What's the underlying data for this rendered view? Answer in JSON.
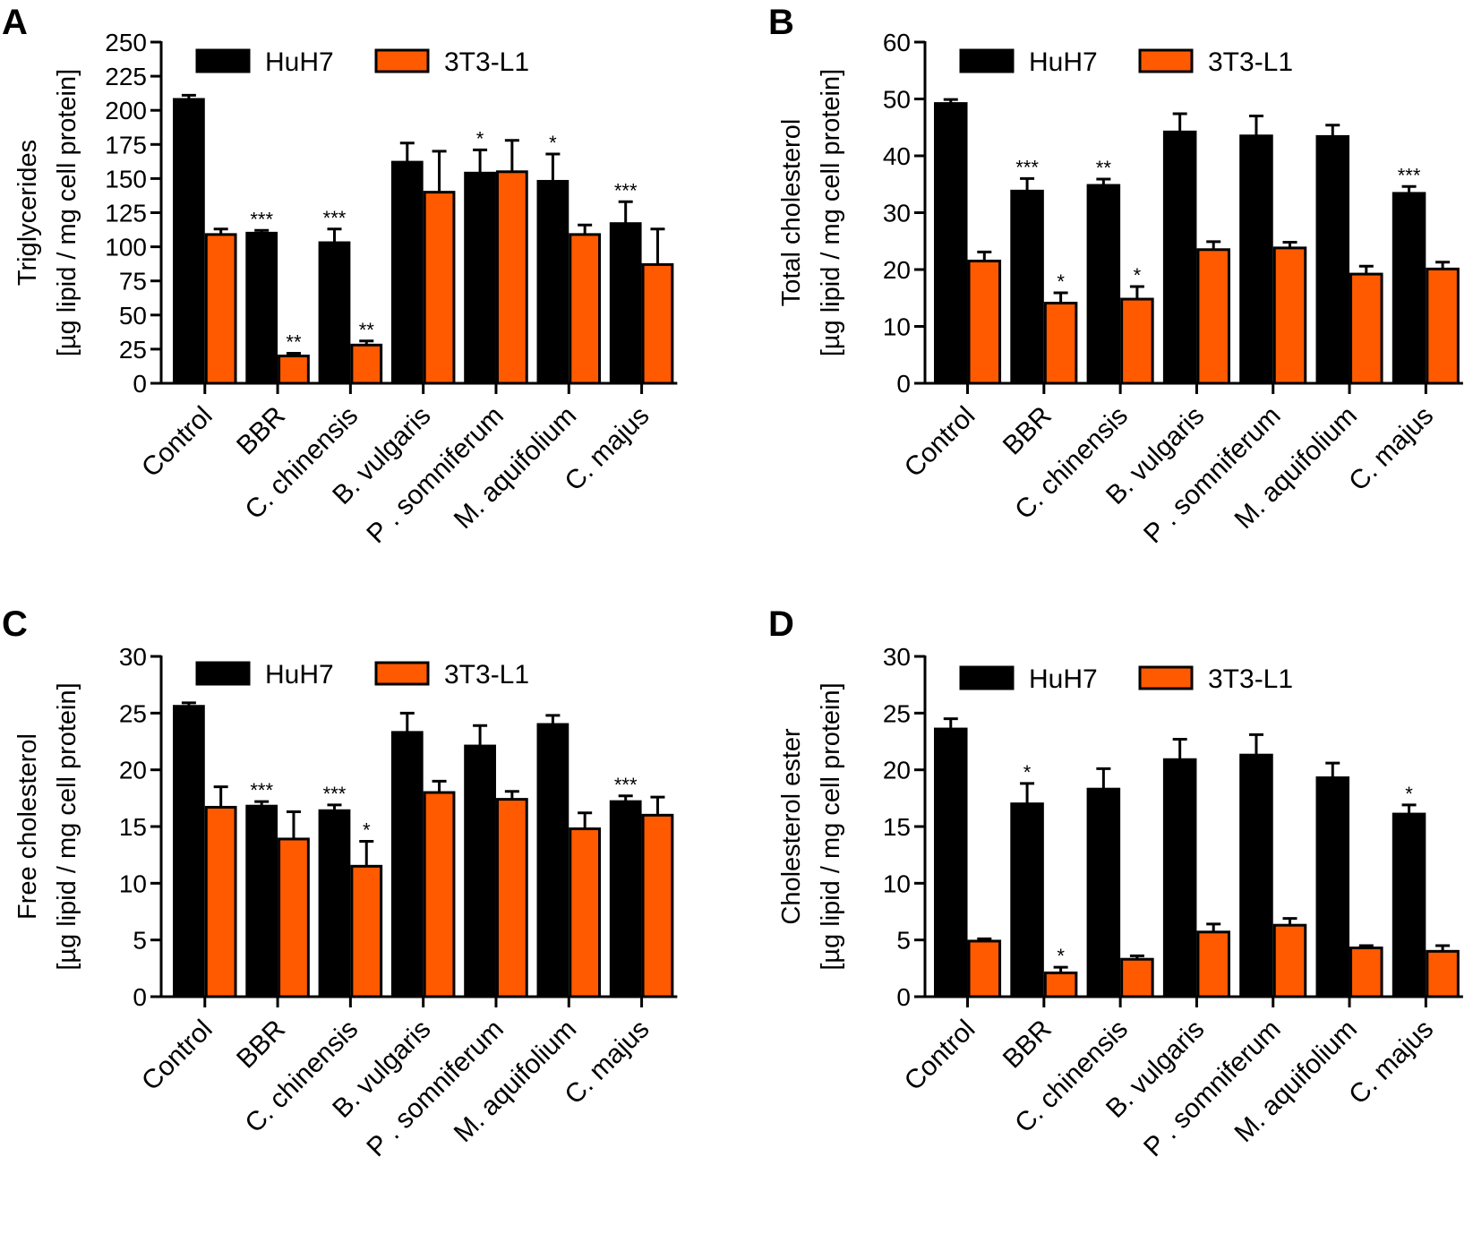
{
  "colors": {
    "huh7": "#000000",
    "l1": "#ff5a00",
    "axis": "#000000"
  },
  "series_names": [
    "HuH7",
    "3T3-L1"
  ],
  "categories": [
    "Control",
    "BBR",
    "C. chinensis",
    "B. vulgaris",
    "P . somniferum",
    "M. aquifolium",
    "C. majus"
  ],
  "ylabel_line2": "[µg lipid / mg cell protein]",
  "chart_data": [
    {
      "panel": "A",
      "type": "bar",
      "ylabel": "Triglycerides",
      "ylim": [
        0,
        250
      ],
      "ticks": [
        0,
        25,
        50,
        75,
        100,
        125,
        150,
        175,
        200,
        225,
        250
      ],
      "categories": [
        "Control",
        "BBR",
        "C. chinensis",
        "B. vulgaris",
        "P . somniferum",
        "M. aquifolium",
        "C. majus"
      ],
      "series": [
        {
          "name": "HuH7",
          "values": [
            208,
            110,
            103,
            162,
            154,
            148,
            117
          ],
          "errors": [
            3,
            2,
            10,
            14,
            17,
            20,
            16
          ],
          "sig": [
            "",
            "***",
            "***",
            "",
            "*",
            "*",
            "***"
          ]
        },
        {
          "name": "3T3-L1",
          "values": [
            109,
            20,
            28,
            140,
            155,
            109,
            87
          ],
          "errors": [
            4,
            2,
            3,
            30,
            23,
            7,
            26
          ],
          "sig": [
            "",
            "**",
            "**",
            "",
            "",
            "",
            ""
          ]
        }
      ],
      "legend": "top"
    },
    {
      "panel": "B",
      "type": "bar",
      "ylabel": "Total cholesterol",
      "ylim": [
        0,
        60
      ],
      "ticks": [
        0,
        10,
        20,
        30,
        40,
        50,
        60
      ],
      "categories": [
        "Control",
        "BBR",
        "C. chinensis",
        "B. vulgaris",
        "P . somniferum",
        "M. aquifolium",
        "C. majus"
      ],
      "series": [
        {
          "name": "HuH7",
          "values": [
            49.2,
            33.8,
            34.8,
            44.2,
            43.5,
            43.4,
            33.4
          ],
          "errors": [
            0.7,
            2.2,
            1.1,
            3.2,
            3.5,
            2.0,
            1.2
          ],
          "sig": [
            "",
            "***",
            "**",
            "",
            "",
            "",
            "***"
          ]
        },
        {
          "name": "3T3-L1",
          "values": [
            21.5,
            14.1,
            14.8,
            23.5,
            23.8,
            19.2,
            20.1
          ],
          "errors": [
            1.6,
            1.8,
            2.2,
            1.4,
            1.0,
            1.4,
            1.2
          ],
          "sig": [
            "",
            "*",
            "*",
            "",
            "",
            "",
            ""
          ]
        }
      ],
      "legend": "top"
    },
    {
      "panel": "C",
      "type": "bar",
      "ylabel": "Free cholesterol",
      "ylim": [
        0,
        30
      ],
      "ticks": [
        0,
        5,
        10,
        15,
        20,
        25,
        30
      ],
      "categories": [
        "Control",
        "BBR",
        "C. chinensis",
        "B. vulgaris",
        "P . somniferum",
        "M. aquifolium",
        "C. majus"
      ],
      "series": [
        {
          "name": "HuH7",
          "values": [
            25.6,
            16.8,
            16.4,
            23.3,
            22.1,
            24.0,
            17.2
          ],
          "errors": [
            0.3,
            0.4,
            0.5,
            1.7,
            1.8,
            0.8,
            0.5
          ],
          "sig": [
            "",
            "***",
            "***",
            "",
            "",
            "",
            "***"
          ]
        },
        {
          "name": "3T3-L1",
          "values": [
            16.7,
            13.9,
            11.5,
            18.0,
            17.4,
            14.8,
            16.0
          ],
          "errors": [
            1.8,
            2.4,
            2.2,
            1.0,
            0.7,
            1.4,
            1.6
          ],
          "sig": [
            "",
            "",
            "*",
            "",
            "",
            "",
            ""
          ]
        }
      ],
      "legend": "top"
    },
    {
      "panel": "D",
      "type": "bar",
      "ylabel": "Cholesterol ester",
      "ylim": [
        0,
        30
      ],
      "ticks": [
        0,
        5,
        10,
        15,
        20,
        25,
        30
      ],
      "categories": [
        "Control",
        "BBR",
        "C. chinensis",
        "B. vulgaris",
        "P . somniferum",
        "M. aquifolium",
        "C. majus"
      ],
      "series": [
        {
          "name": "HuH7",
          "values": [
            23.6,
            17.0,
            18.3,
            20.9,
            21.3,
            19.3,
            16.1
          ],
          "errors": [
            0.9,
            1.8,
            1.8,
            1.8,
            1.8,
            1.3,
            0.8
          ],
          "sig": [
            "",
            "*",
            "",
            "",
            "",
            "",
            "*"
          ]
        },
        {
          "name": "3T3-L1",
          "values": [
            4.9,
            2.1,
            3.3,
            5.7,
            6.3,
            4.3,
            4.0
          ],
          "errors": [
            0.2,
            0.5,
            0.3,
            0.7,
            0.6,
            0.2,
            0.5
          ],
          "sig": [
            "",
            "*",
            "",
            "",
            "",
            "",
            ""
          ]
        }
      ],
      "legend": "top"
    }
  ]
}
